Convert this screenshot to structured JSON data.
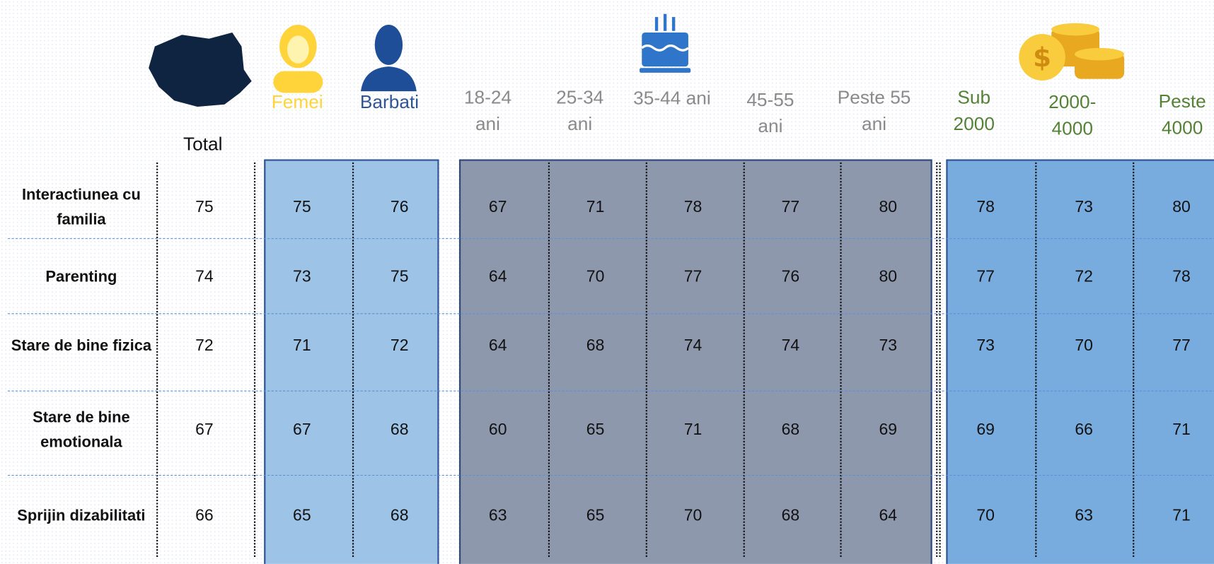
{
  "columns": [
    "Total",
    "Femei",
    "Barbati",
    "18-24 ani",
    "25-34 ani",
    "35-44 ani",
    "45-55 ani",
    "Peste 55 ani",
    "Sub 2000",
    "2000-4000",
    "Peste 4000"
  ],
  "rows": [
    {
      "label": "Interactiunea cu familia",
      "values": [
        75,
        75,
        76,
        67,
        71,
        78,
        77,
        80,
        78,
        73,
        80
      ]
    },
    {
      "label": "Parenting",
      "values": [
        74,
        73,
        75,
        64,
        70,
        77,
        76,
        80,
        77,
        72,
        78
      ]
    },
    {
      "label": "Stare de bine fizica",
      "values": [
        72,
        71,
        72,
        64,
        68,
        74,
        74,
        73,
        73,
        70,
        77
      ]
    },
    {
      "label": "Stare de bine emotionala",
      "values": [
        67,
        67,
        68,
        60,
        65,
        71,
        68,
        69,
        69,
        66,
        71
      ]
    },
    {
      "label": "Sprijin dizabilitati",
      "values": [
        66,
        65,
        68,
        63,
        65,
        70,
        68,
        64,
        70,
        63,
        71
      ]
    }
  ]
}
